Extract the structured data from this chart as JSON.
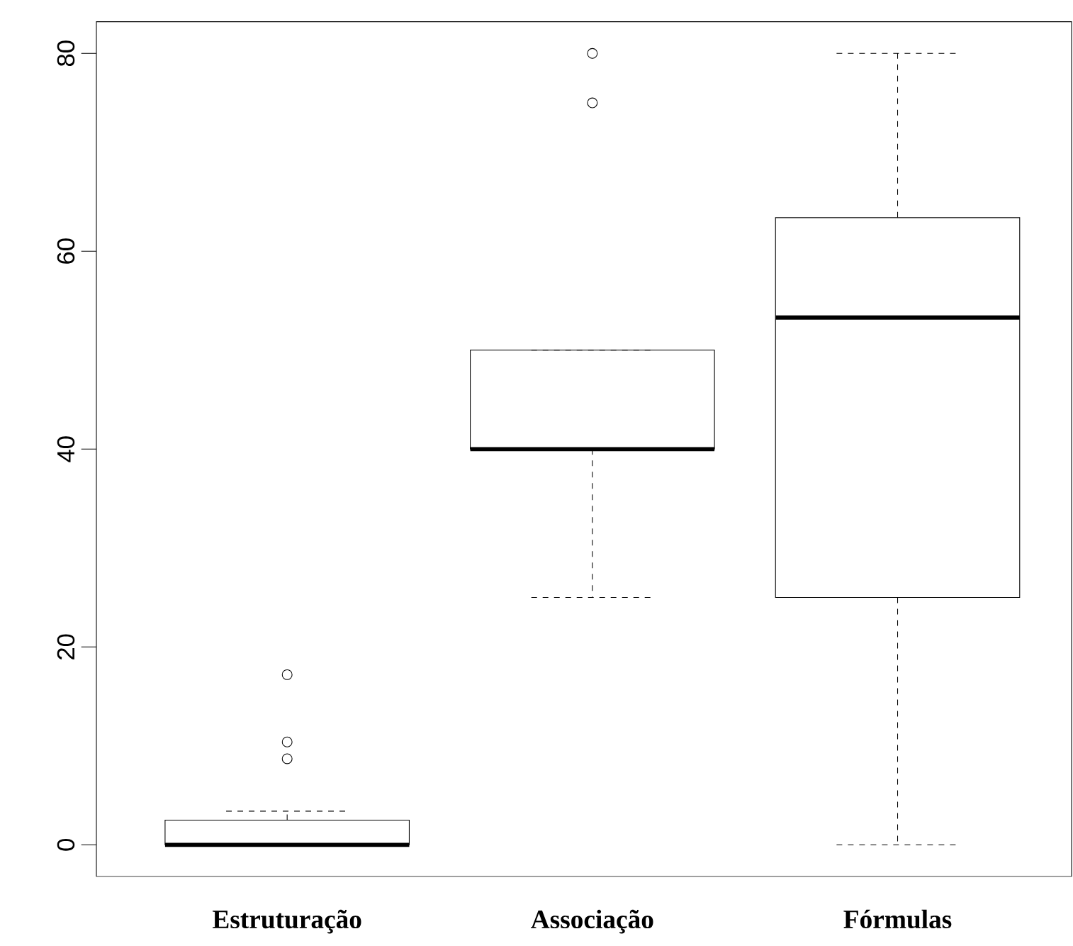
{
  "chart_data": {
    "type": "box",
    "categories": [
      "Estruturação",
      "Associação",
      "Fórmulas"
    ],
    "boxes": [
      {
        "low": 0,
        "q1": 0,
        "median": 0,
        "q3": 2.5,
        "high": 3.4,
        "outliers": [
          8.7,
          10.4,
          17.2
        ]
      },
      {
        "low": 25,
        "q1": 40,
        "median": 40,
        "q3": 50,
        "high": 50,
        "outliers": [
          75,
          80
        ]
      },
      {
        "low": 0,
        "q1": 25,
        "median": 53.3,
        "q3": 63.4,
        "high": 80
      }
    ],
    "ylim": [
      -3.2,
      83.2
    ],
    "yticks": [
      0,
      20,
      40,
      60,
      80
    ]
  }
}
